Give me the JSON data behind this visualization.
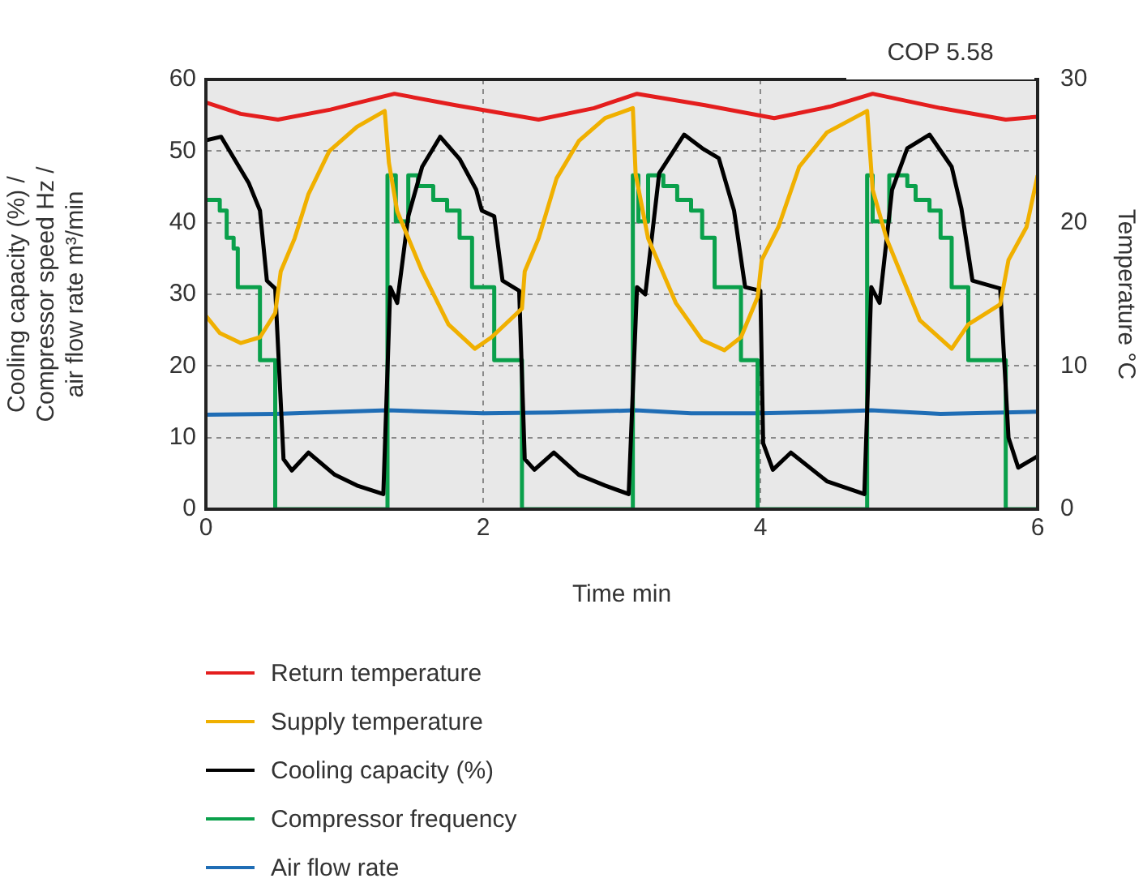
{
  "chart_data": {
    "type": "line",
    "xlabel": "Time min",
    "ylabel": "Cooling capacity (%) / Compressor speed Hz / air flow rate m³/min",
    "y2label": "Temperature °C",
    "xlim": [
      0,
      6
    ],
    "xticks": [
      0,
      2,
      4,
      6
    ],
    "ylim": [
      0,
      60
    ],
    "yticks": [
      0,
      10,
      20,
      30,
      40,
      50,
      60
    ],
    "y2lim": [
      0,
      30
    ],
    "y2ticks": [
      0,
      10,
      20,
      30
    ],
    "grid": true,
    "legend": "bottom",
    "marker": "none",
    "annotations": [
      "COP 5.58"
    ],
    "series": [
      {
        "name": "Return temperature",
        "color": "#e41e1e",
        "axis": "y2",
        "x": [
          0,
          0.25,
          0.52,
          0.9,
          1.36,
          1.8,
          2.4,
          2.8,
          3.11,
          3.6,
          4.1,
          4.5,
          4.81,
          5.3,
          5.77,
          6
        ],
        "values": [
          28.4,
          27.6,
          27.2,
          27.9,
          29.0,
          28.2,
          27.2,
          28.0,
          29.0,
          28.2,
          27.3,
          28.1,
          29.0,
          28.0,
          27.2,
          27.4
        ]
      },
      {
        "name": "Supply temperature",
        "color": "#f0b000",
        "axis": "y2",
        "x": [
          0,
          0.1,
          0.25,
          0.39,
          0.5,
          0.54,
          0.64,
          0.74,
          0.89,
          1.09,
          1.29,
          1.32,
          1.38,
          1.56,
          1.75,
          1.94,
          2.06,
          2.28,
          2.3,
          2.4,
          2.53,
          2.69,
          2.88,
          3.08,
          3.1,
          3.19,
          3.39,
          3.58,
          3.74,
          3.86,
          3.98,
          4.01,
          4.13,
          4.28,
          4.48,
          4.77,
          4.81,
          4.91,
          5.15,
          5.38,
          5.5,
          5.73,
          5.79,
          5.92,
          6
        ],
        "values": [
          13.5,
          12.3,
          11.6,
          12,
          13.7,
          16.6,
          18.9,
          22,
          25,
          26.7,
          27.8,
          24.2,
          20.8,
          16.6,
          12.9,
          11.2,
          12,
          14,
          16.6,
          18.9,
          23.1,
          25.7,
          27.3,
          28,
          23.4,
          18.9,
          14.4,
          11.8,
          11.1,
          12,
          14.8,
          17.4,
          19.7,
          23.9,
          26.3,
          27.8,
          22.3,
          18.9,
          13.2,
          11.2,
          12.9,
          14.3,
          17.4,
          19.7,
          23.3
        ]
      },
      {
        "name": "Cooling capacity (%)",
        "color": "#000000",
        "x": [
          0,
          0.11,
          0.31,
          0.39,
          0.44,
          0.5,
          0.56,
          0.62,
          0.74,
          0.93,
          1.09,
          1.28,
          1.33,
          1.38,
          1.46,
          1.56,
          1.69,
          1.83,
          1.95,
          1.99,
          2.08,
          2.14,
          2.26,
          2.3,
          2.37,
          2.51,
          2.69,
          2.88,
          3.05,
          3.11,
          3.17,
          3.27,
          3.45,
          3.58,
          3.7,
          3.81,
          3.89,
          4.0,
          4.02,
          4.09,
          4.22,
          4.48,
          4.75,
          4.8,
          4.86,
          4.95,
          5.06,
          5.22,
          5.38,
          5.45,
          5.53,
          5.73,
          5.79,
          5.86,
          6
        ],
        "values": [
          51.5,
          52,
          45.5,
          41.7,
          31.9,
          30.8,
          7,
          5.4,
          7.9,
          4.8,
          3.3,
          2.1,
          31,
          28.8,
          40.9,
          47.8,
          52,
          48.9,
          44.6,
          41.7,
          40.9,
          31.9,
          30.5,
          7,
          5.5,
          7.9,
          4.8,
          3.3,
          2.1,
          31,
          30,
          46.9,
          52.3,
          50.4,
          49,
          41.7,
          31,
          30.5,
          9.2,
          5.5,
          7.9,
          3.9,
          2.1,
          31,
          28.8,
          44.6,
          50.4,
          52.3,
          47.8,
          42,
          31.9,
          30.8,
          10,
          5.8,
          7.4
        ]
      },
      {
        "name": "Compressor frequency",
        "color": "#0aa04b",
        "type": "step",
        "x": [
          0,
          0.1,
          0.15,
          0.2,
          0.23,
          0.39,
          0.5,
          1.31,
          1.37,
          1.46,
          1.53,
          1.64,
          1.74,
          1.83,
          1.92,
          2.08,
          2.28,
          3.08,
          3.12,
          3.19,
          3.3,
          3.4,
          3.5,
          3.58,
          3.67,
          3.86,
          3.98,
          4.77,
          4.81,
          4.93,
          5.06,
          5.12,
          5.22,
          5.3,
          5.38,
          5.5,
          5.77,
          6
        ],
        "values": [
          43.2,
          41.7,
          37.9,
          36.4,
          31,
          20.8,
          0,
          46.6,
          40.2,
          46.6,
          45.1,
          43.2,
          41.7,
          37.9,
          31,
          20.8,
          0,
          46.6,
          40.2,
          46.6,
          45.1,
          43.2,
          41.7,
          37.9,
          31,
          20.8,
          0,
          46.6,
          40.2,
          46.6,
          45.1,
          43.2,
          41.7,
          37.9,
          31,
          20.8,
          0,
          0
        ]
      },
      {
        "name": "Air flow rate",
        "color": "#1f6db5",
        "x": [
          0,
          0.5,
          1.31,
          2,
          2.5,
          3.1,
          3.5,
          4,
          4.5,
          4.8,
          5.3,
          6
        ],
        "values": [
          13.2,
          13.3,
          13.8,
          13.4,
          13.5,
          13.8,
          13.4,
          13.4,
          13.6,
          13.8,
          13.3,
          13.6
        ]
      }
    ]
  }
}
